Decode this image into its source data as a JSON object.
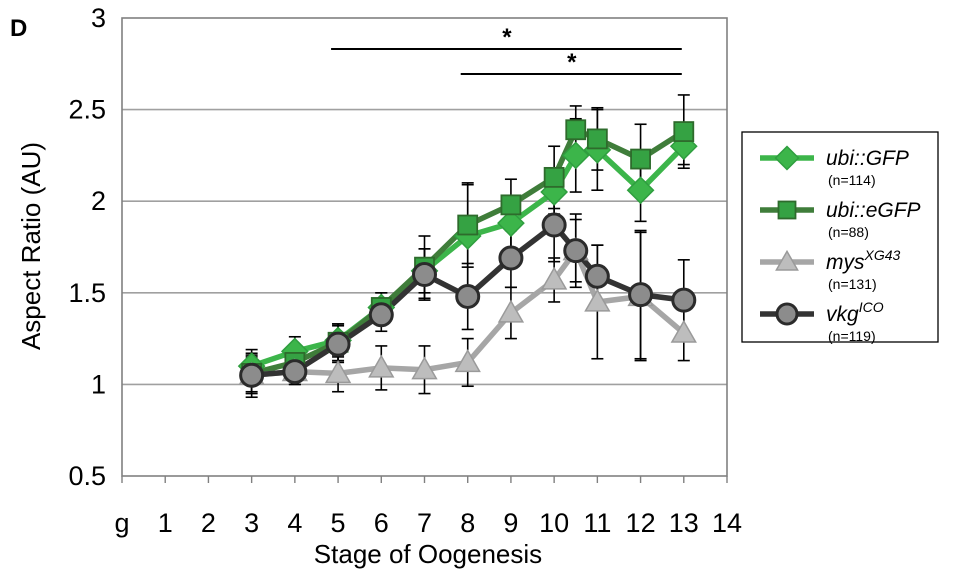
{
  "panel_label": "D",
  "chart_data": {
    "type": "line",
    "xlabel": "Stage of Oogenesis",
    "ylabel": "Aspect Ratio (AU)",
    "categories": [
      "g",
      "1",
      "2",
      "3",
      "4",
      "5",
      "6",
      "7",
      "8",
      "9",
      "10",
      "11",
      "12",
      "13",
      "14"
    ],
    "ylim": [
      0.5,
      3
    ],
    "yticks": [
      "0.5",
      "1",
      "1.5",
      "2",
      "2.5",
      "3"
    ],
    "grid": true,
    "legend_position": "right",
    "significance": [
      {
        "from": 5,
        "to": 13,
        "label": "*"
      },
      {
        "from": 8,
        "to": 13,
        "label": "*"
      }
    ],
    "series": [
      {
        "name": "ubi::GFP",
        "superscript": "",
        "n_label": "(n=114)",
        "color": "#3cb54a",
        "marker_fill": "#3cb54a",
        "marker": "diamond",
        "x": [
          3,
          4,
          5,
          6,
          7,
          8,
          9,
          10,
          10.5,
          11,
          12,
          13
        ],
        "y": [
          1.1,
          1.18,
          1.24,
          1.42,
          1.62,
          1.81,
          1.88,
          2.05,
          2.25,
          2.28,
          2.06,
          2.3
        ],
        "err": [
          0.09,
          0.08,
          0.09,
          0.08,
          0.12,
          0.28,
          0.14,
          0.12,
          0.2,
          0.22,
          0.17,
          0.1
        ]
      },
      {
        "name": "ubi::eGFP",
        "superscript": "",
        "n_label": "(n=88)",
        "color": "#3f7d3a",
        "marker_fill": "#35a243",
        "marker": "square",
        "x": [
          3,
          4,
          5,
          6,
          7,
          8,
          9,
          10,
          10.5,
          11,
          12,
          13
        ],
        "y": [
          1.06,
          1.12,
          1.23,
          1.42,
          1.64,
          1.87,
          1.98,
          2.13,
          2.39,
          2.34,
          2.23,
          2.38
        ],
        "err": [
          0.1,
          0.08,
          0.1,
          0.08,
          0.17,
          0.23,
          0.14,
          0.17,
          0.13,
          0.17,
          0.19,
          0.2
        ]
      },
      {
        "name": "mys",
        "superscript": "XG43",
        "n_label": "(n=131)",
        "color": "#a6a6a6",
        "marker_fill": "#bdbdbd",
        "marker": "triangle",
        "x": [
          3,
          4,
          5,
          6,
          7,
          8,
          9,
          10,
          10.5,
          11,
          12,
          13
        ],
        "y": [
          1.05,
          1.07,
          1.06,
          1.09,
          1.08,
          1.12,
          1.39,
          1.57,
          1.73,
          1.45,
          1.48,
          1.28
        ],
        "err": [
          0.1,
          0.07,
          0.1,
          0.12,
          0.13,
          0.13,
          0.14,
          0.12,
          0.2,
          0.31,
          0.35,
          0.15
        ]
      },
      {
        "name": "vkg",
        "superscript": "ICO",
        "n_label": "(n=119)",
        "color": "#333333",
        "marker_fill": "#8c8c8c",
        "marker": "circle",
        "x": [
          3,
          4,
          5,
          6,
          7,
          8,
          9,
          10,
          10.5,
          11,
          12,
          13
        ],
        "y": [
          1.05,
          1.07,
          1.22,
          1.38,
          1.6,
          1.48,
          1.69,
          1.87,
          1.73,
          1.59,
          1.49,
          1.46
        ],
        "err": [
          0.12,
          0.07,
          0.1,
          0.09,
          0.14,
          0.18,
          0.16,
          0.2,
          0.17,
          0.17,
          0.35,
          0.22
        ]
      }
    ]
  }
}
